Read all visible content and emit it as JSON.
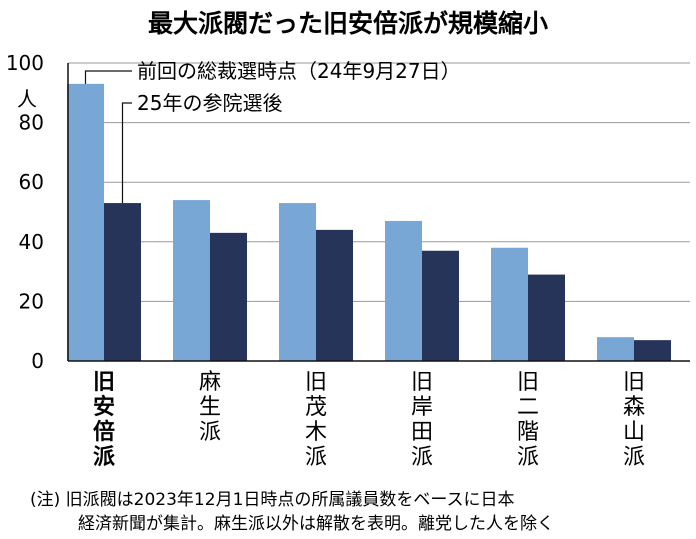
{
  "chart_data": {
    "type": "bar",
    "title": "最大派閥だった旧安倍派が規模縮小",
    "ylabel": "人",
    "ylim": [
      0,
      100
    ],
    "yticks": [
      0,
      20,
      40,
      60,
      80,
      100
    ],
    "categories": [
      [
        "旧",
        "安",
        "倍",
        "派"
      ],
      [
        "麻",
        "生",
        "派"
      ],
      [
        "旧",
        "茂",
        "木",
        "派"
      ],
      [
        "旧",
        "岸",
        "田",
        "派"
      ],
      [
        "旧",
        "二",
        "階",
        "派"
      ],
      [
        "旧",
        "森",
        "山",
        "派"
      ]
    ],
    "highlight_category": 0,
    "series": [
      {
        "name": "前回の総裁選時点（24年9月27日）",
        "color": "#78a7d6",
        "values": [
          93,
          54,
          53,
          47,
          38,
          8
        ]
      },
      {
        "name": "25年の参院選後",
        "color": "#27345a",
        "values": [
          53,
          43,
          44,
          37,
          29,
          7
        ]
      }
    ]
  },
  "note": {
    "line1": "(注) 旧派閥は2023年12月1日時点の所属議員数をベースに日本",
    "line2": "経済新聞が集計。麻生派以外は解散を表明。離党した人を除く"
  }
}
